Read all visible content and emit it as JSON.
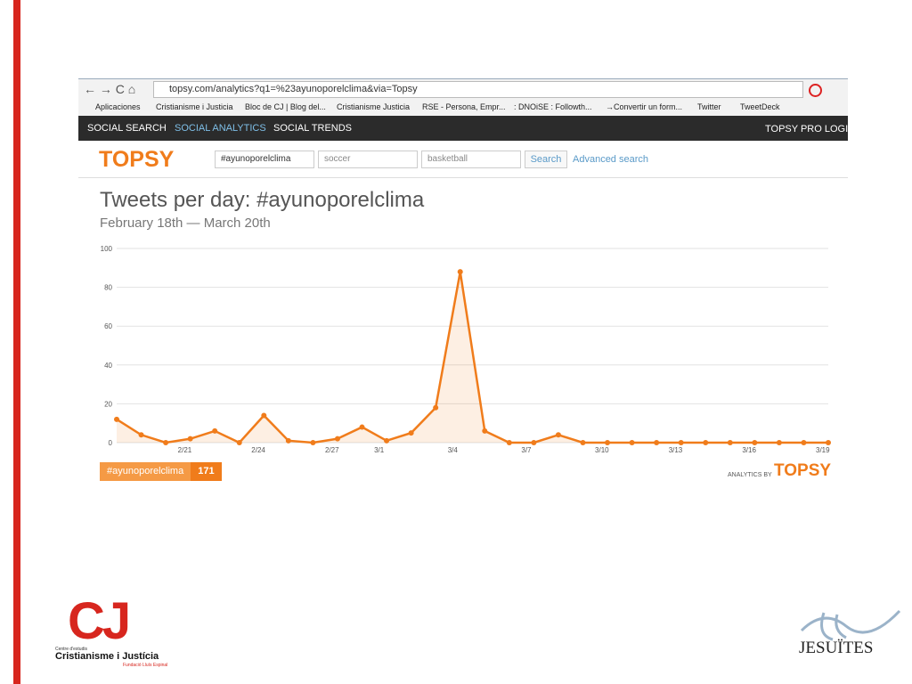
{
  "browser": {
    "url": "topsy.com/analytics?q1=%23ayunoporelclima&via=Topsy",
    "bookmarks": [
      "Aplicaciones",
      "Cristianisme i Justicia",
      "Bloc de CJ | Blog del...",
      "Cristianisme Justicia",
      "RSE - Persona, Empr...",
      ": DNOiSE : Followth...",
      "→Convertir un form...",
      "Twitter",
      "TweetDeck"
    ]
  },
  "nav": {
    "items": [
      "SOCIAL SEARCH",
      "SOCIAL ANALYTICS",
      "SOCIAL TRENDS"
    ],
    "login": "TOPSY PRO LOGIN ▾"
  },
  "search": {
    "logo": "TOPSY",
    "inputs": [
      "#ayunoporelclima",
      "soccer",
      "basketball"
    ],
    "button": "Search",
    "advanced": "Advanced search"
  },
  "chart_data": {
    "type": "line",
    "title": "Tweets per day: #ayunoporelclima",
    "subtitle": "February 18th — March 20th",
    "categories": [
      null,
      null,
      null,
      "2/21",
      null,
      null,
      "2/24",
      null,
      null,
      "2/27",
      null,
      "3/1",
      null,
      null,
      "3/4",
      null,
      null,
      "3/7",
      null,
      null,
      "3/10",
      null,
      null,
      "3/13",
      null,
      null,
      "3/16",
      null,
      null,
      "3/19"
    ],
    "series": [
      {
        "name": "#ayunoporelclima",
        "color": "#f07c1b",
        "values": [
          12,
          4,
          0,
          2,
          6,
          0,
          14,
          1,
          0,
          2,
          8,
          1,
          5,
          18,
          88,
          6,
          0,
          0,
          4,
          0,
          0,
          0,
          0,
          0,
          0,
          0,
          0,
          0,
          0,
          0
        ]
      }
    ],
    "ylim": [
      0,
      100
    ],
    "yticks": [
      0,
      20,
      40,
      60,
      80,
      100
    ],
    "grid": true,
    "legend_total": "171",
    "credit": "ANALYTICS BY",
    "credit_logo": "TOPSY"
  },
  "footer": {
    "cj_logo": "CJ",
    "cj_small": "Centre d'estudis",
    "cj_name": "Cristianisme i Justícia",
    "cj_sub": "Fundació Lluís Espinal",
    "jesuites": "JESUÏTES"
  }
}
